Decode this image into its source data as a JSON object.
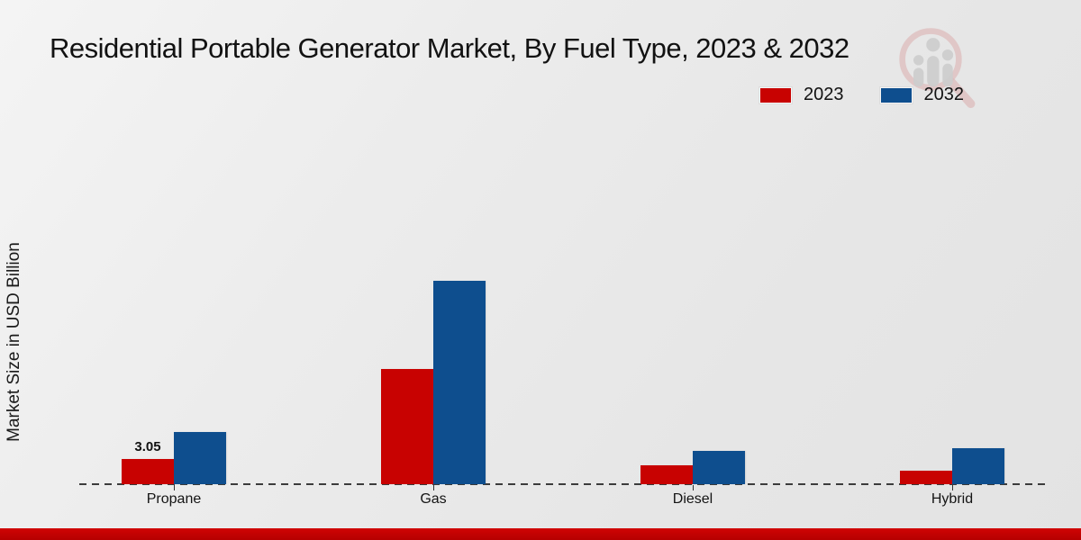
{
  "title": "Residential Portable Generator Market, By Fuel Type, 2023 & 2032",
  "legend": {
    "items": [
      {
        "label": "2023",
        "color": "#c80201"
      },
      {
        "label": "2032",
        "color": "#0e4e8e"
      }
    ]
  },
  "watermark": {
    "name": "market-research-magnifier-logo"
  },
  "footer": {
    "color": "#c00404"
  },
  "chart_data": {
    "type": "bar",
    "title": "Residential Portable Generator Market, By Fuel Type, 2023 & 2032",
    "xlabel": "",
    "ylabel": "Market Size in USD Billion",
    "ylim": [
      0,
      25
    ],
    "grid": false,
    "axis_style": "dashed-baseline-only",
    "legend_position": "top-right",
    "categories": [
      "Propane",
      "Gas",
      "Diesel",
      "Hybrid"
    ],
    "series": [
      {
        "name": "2023",
        "color": "#c80201",
        "values": [
          3.05,
          13.9,
          2.3,
          1.6
        ]
      },
      {
        "name": "2032",
        "color": "#0e4e8e",
        "values": [
          6.3,
          24.6,
          4.0,
          4.4
        ]
      }
    ],
    "data_labels": [
      {
        "category": "Propane",
        "series": "2023",
        "text": "3.05"
      }
    ]
  }
}
